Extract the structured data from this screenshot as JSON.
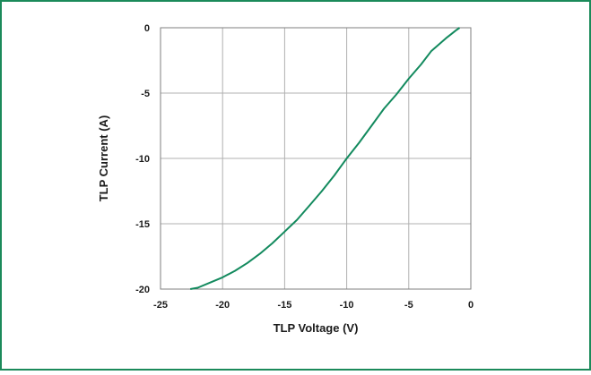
{
  "colors": {
    "frame_border": "#1b8a5a",
    "curve": "#138a5e",
    "grid": "#b0b0b0",
    "plot_border": "#7f7f7f"
  },
  "chart_data": {
    "type": "line",
    "title": "",
    "xlabel": "TLP Voltage (V)",
    "ylabel": "TLP Current (A)",
    "xlim": [
      -25,
      0
    ],
    "ylim": [
      -20,
      0
    ],
    "x_ticks": [
      -25,
      -20,
      -15,
      -10,
      -5,
      0
    ],
    "y_ticks": [
      0,
      -5,
      -10,
      -15,
      -20
    ],
    "grid": true,
    "legend": "none",
    "series": [
      {
        "x": [
          -0.9,
          -1.2,
          -1.6,
          -2.0,
          -2.6,
          -3.2,
          -4.0,
          -5.0,
          -6.0,
          -7.0,
          -8.0,
          -9.0,
          -10.0,
          -11.0,
          -12.0,
          -13.0,
          -14.0,
          -15.0,
          -16.0,
          -17.0,
          -18.0,
          -19.0,
          -20.0,
          -21.0,
          -22.0,
          -22.6
        ],
        "y": [
          0.0,
          -0.2,
          -0.5,
          -0.8,
          -1.3,
          -1.8,
          -2.8,
          -3.9,
          -5.1,
          -6.2,
          -7.5,
          -8.8,
          -10.0,
          -11.3,
          -12.5,
          -13.6,
          -14.7,
          -15.6,
          -16.5,
          -17.3,
          -18.0,
          -18.6,
          -19.1,
          -19.5,
          -19.9,
          -20.0
        ]
      }
    ]
  }
}
